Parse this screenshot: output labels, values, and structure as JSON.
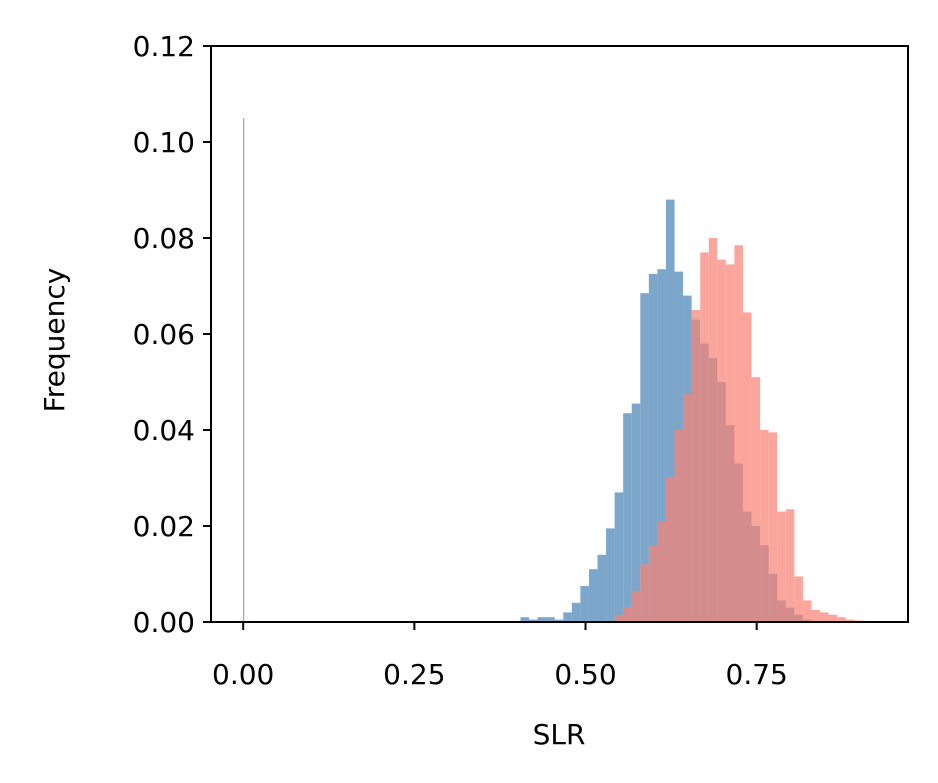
{
  "chart_data": {
    "type": "histogram",
    "xlabel": "SLR",
    "ylabel": "Frequency",
    "xlim": [
      -0.047,
      0.971
    ],
    "ylim": [
      0,
      0.12
    ],
    "xticks": [
      {
        "value": 0,
        "label": "0.00"
      },
      {
        "value": 0.25,
        "label": "0.25"
      },
      {
        "value": 0.5,
        "label": "0.50"
      },
      {
        "value": 0.75,
        "label": "0.75"
      }
    ],
    "yticks": [
      {
        "value": 0,
        "label": "0.00"
      },
      {
        "value": 0.02,
        "label": "0.02"
      },
      {
        "value": 0.04,
        "label": "0.04"
      },
      {
        "value": 0.06,
        "label": "0.06"
      },
      {
        "value": 0.08,
        "label": "0.08"
      },
      {
        "value": 0.1,
        "label": "0.10"
      },
      {
        "value": 0.12,
        "label": "0.12"
      }
    ],
    "alpha": 0.7,
    "series": [
      {
        "color": "#4682b4",
        "bins": [
          0,
          0.0015,
          0.405,
          0.4175,
          0.43,
          0.4425,
          0.455,
          0.4675,
          0.48,
          0.4925,
          0.505,
          0.5175,
          0.53,
          0.5425,
          0.555,
          0.5675,
          0.58,
          0.5925,
          0.605,
          0.6175,
          0.63,
          0.6425,
          0.655,
          0.6675,
          0.68,
          0.6925,
          0.705,
          0.7175,
          0.73,
          0.7425,
          0.755,
          0.7675,
          0.78,
          0.7925,
          0.805,
          0.8175,
          0.83
        ],
        "values": [
          0.105,
          0,
          0.001,
          0.0005,
          0.001,
          0.001,
          0.0005,
          0.002,
          0.004,
          0.0075,
          0.011,
          0.014,
          0.0195,
          0.027,
          0.0435,
          0.0455,
          0.0685,
          0.0725,
          0.0735,
          0.088,
          0.073,
          0.068,
          0.063,
          0.058,
          0.055,
          0.05,
          0.041,
          0.033,
          0.023,
          0.02,
          0.016,
          0.01,
          0.0045,
          0.003,
          0.0015,
          0.0005
        ]
      },
      {
        "color": "#fa8072",
        "bins": [
          0,
          0.0015,
          0.5425,
          0.555,
          0.5675,
          0.58,
          0.5925,
          0.605,
          0.6175,
          0.63,
          0.6425,
          0.655,
          0.6675,
          0.68,
          0.6925,
          0.705,
          0.7175,
          0.73,
          0.7425,
          0.755,
          0.7675,
          0.78,
          0.7925,
          0.805,
          0.8175,
          0.83,
          0.8425,
          0.855,
          0.8675,
          0.88,
          0.8925,
          0.905
        ],
        "values": [
          0.105,
          0,
          0.0015,
          0.003,
          0.0065,
          0.012,
          0.016,
          0.021,
          0.03,
          0.04,
          0.0475,
          0.065,
          0.077,
          0.08,
          0.0755,
          0.0745,
          0.0785,
          0.0645,
          0.051,
          0.04,
          0.0395,
          0.023,
          0.0235,
          0.0095,
          0.0045,
          0.0025,
          0.002,
          0.0015,
          0.001,
          0.0005,
          0.0003
        ]
      }
    ]
  }
}
